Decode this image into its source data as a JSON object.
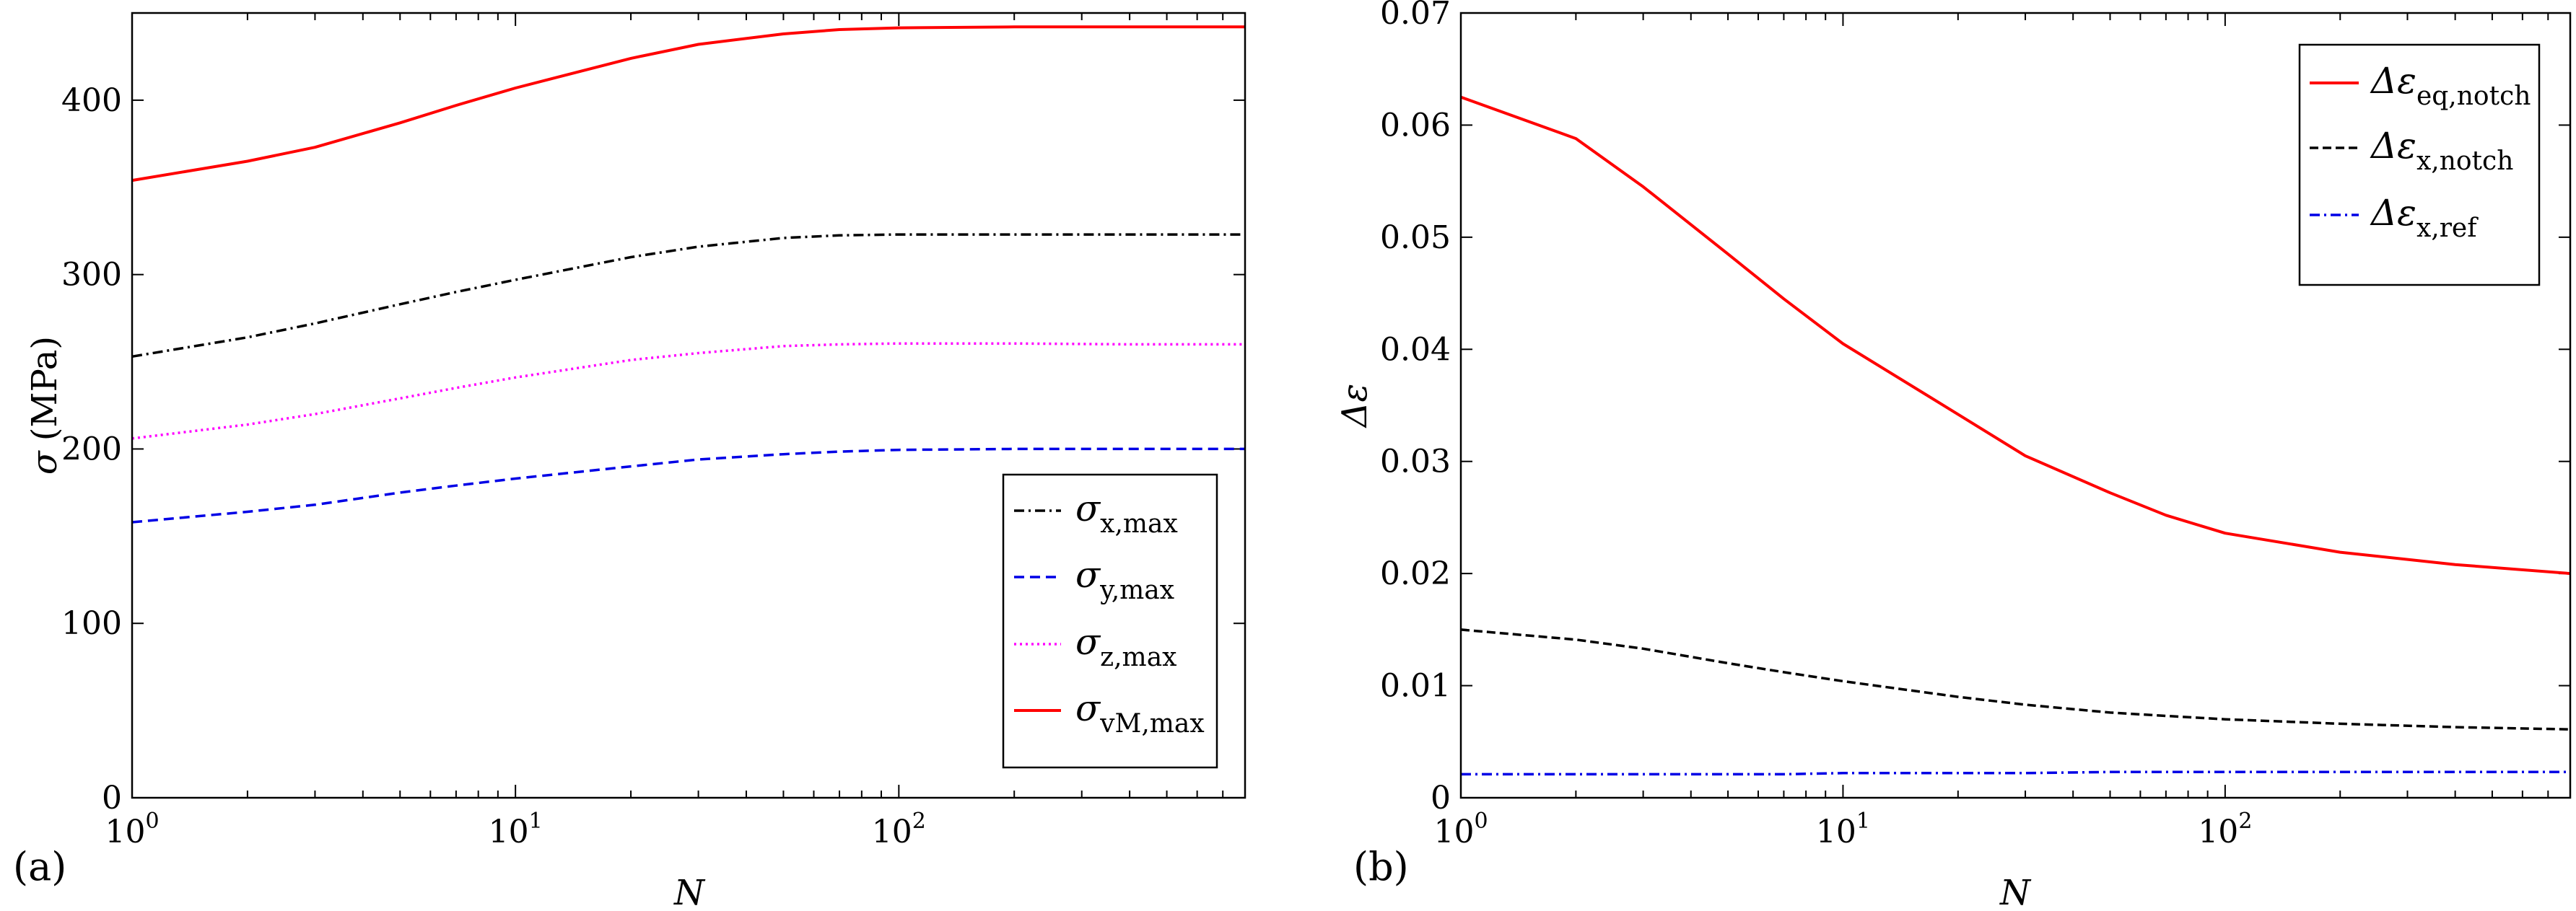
{
  "colors": {
    "red": "#ff0000",
    "black": "#000000",
    "blue": "#0000e6",
    "magenta": "#ff00ff"
  },
  "chart_data": [
    {
      "type": "line",
      "panel": "(a)",
      "xlabel": "N",
      "ylabel_symbol": "σ",
      "ylabel_unit": "(MPa)",
      "xscale": "log",
      "xlim": [
        1,
        800
      ],
      "ylim": [
        0,
        450
      ],
      "x_ticks": [
        {
          "value": 1,
          "base": "10",
          "exp": "0"
        },
        {
          "value": 10,
          "base": "10",
          "exp": "1"
        },
        {
          "value": 100,
          "base": "10",
          "exp": "2"
        }
      ],
      "y_ticks": [
        "0",
        "100",
        "200",
        "300",
        "400"
      ],
      "legend_position": "lower-right",
      "x": [
        1,
        2,
        3,
        5,
        7,
        10,
        20,
        30,
        50,
        70,
        100,
        200,
        400,
        800
      ],
      "series": [
        {
          "symbol": "σ",
          "sub": "x,max",
          "color": "#000000",
          "dash": "14 6 3 6",
          "values": [
            253,
            264,
            272,
            283,
            290,
            297,
            310,
            316,
            321,
            322.5,
            323,
            323,
            323,
            323
          ]
        },
        {
          "symbol": "σ",
          "sub": "y,max",
          "color": "#0000e6",
          "dash": "14 8",
          "values": [
            158,
            164,
            168,
            175,
            179,
            183,
            190,
            194,
            197,
            198.5,
            199.5,
            200,
            200,
            200
          ]
        },
        {
          "symbol": "σ",
          "sub": "z,max",
          "color": "#ff00ff",
          "dash": "3 5",
          "values": [
            206,
            214,
            220,
            229,
            235,
            241,
            251,
            255,
            259,
            260,
            260.5,
            260.5,
            260,
            260
          ]
        },
        {
          "symbol": "σ",
          "sub": "vM,max",
          "color": "#ff0000",
          "dash": "",
          "values": [
            354,
            365,
            373,
            387,
            397,
            407,
            424,
            432,
            438,
            440.5,
            441.5,
            442,
            442,
            442
          ]
        }
      ]
    },
    {
      "type": "line",
      "panel": "(b)",
      "xlabel": "N",
      "ylabel_symbol": "Δε",
      "xscale": "log",
      "xlim": [
        1,
        800
      ],
      "ylim": [
        0,
        0.07
      ],
      "x_ticks": [
        {
          "value": 1,
          "base": "10",
          "exp": "0"
        },
        {
          "value": 10,
          "base": "10",
          "exp": "1"
        },
        {
          "value": 100,
          "base": "10",
          "exp": "2"
        }
      ],
      "y_ticks": [
        "0",
        "0.01",
        "0.02",
        "0.03",
        "0.04",
        "0.05",
        "0.06",
        "0.07"
      ],
      "legend_position": "top-right",
      "x": [
        1,
        2,
        3,
        5,
        7,
        10,
        20,
        30,
        50,
        70,
        100,
        200,
        400,
        800
      ],
      "series": [
        {
          "symbol": "Δε",
          "sub": "eq,notch",
          "color": "#ff0000",
          "dash": "",
          "values": [
            0.0625,
            0.0588,
            0.0545,
            0.0485,
            0.0445,
            0.0405,
            0.0342,
            0.0305,
            0.0272,
            0.0252,
            0.0236,
            0.0219,
            0.0208,
            0.02
          ]
        },
        {
          "symbol": "Δε",
          "sub": "x,notch",
          "color": "#000000",
          "dash": "12 6",
          "values": [
            0.015,
            0.0141,
            0.0133,
            0.012,
            0.0112,
            0.0104,
            0.009,
            0.0083,
            0.0076,
            0.0073,
            0.007,
            0.0066,
            0.0063,
            0.0061
          ]
        },
        {
          "symbol": "Δε",
          "sub": "x,ref",
          "color": "#0000e6",
          "dash": "14 6 3 6",
          "values": [
            0.0021,
            0.0021,
            0.0021,
            0.0021,
            0.0021,
            0.0022,
            0.0022,
            0.0022,
            0.0023,
            0.0023,
            0.0023,
            0.0023,
            0.0023,
            0.0023
          ]
        }
      ]
    }
  ]
}
